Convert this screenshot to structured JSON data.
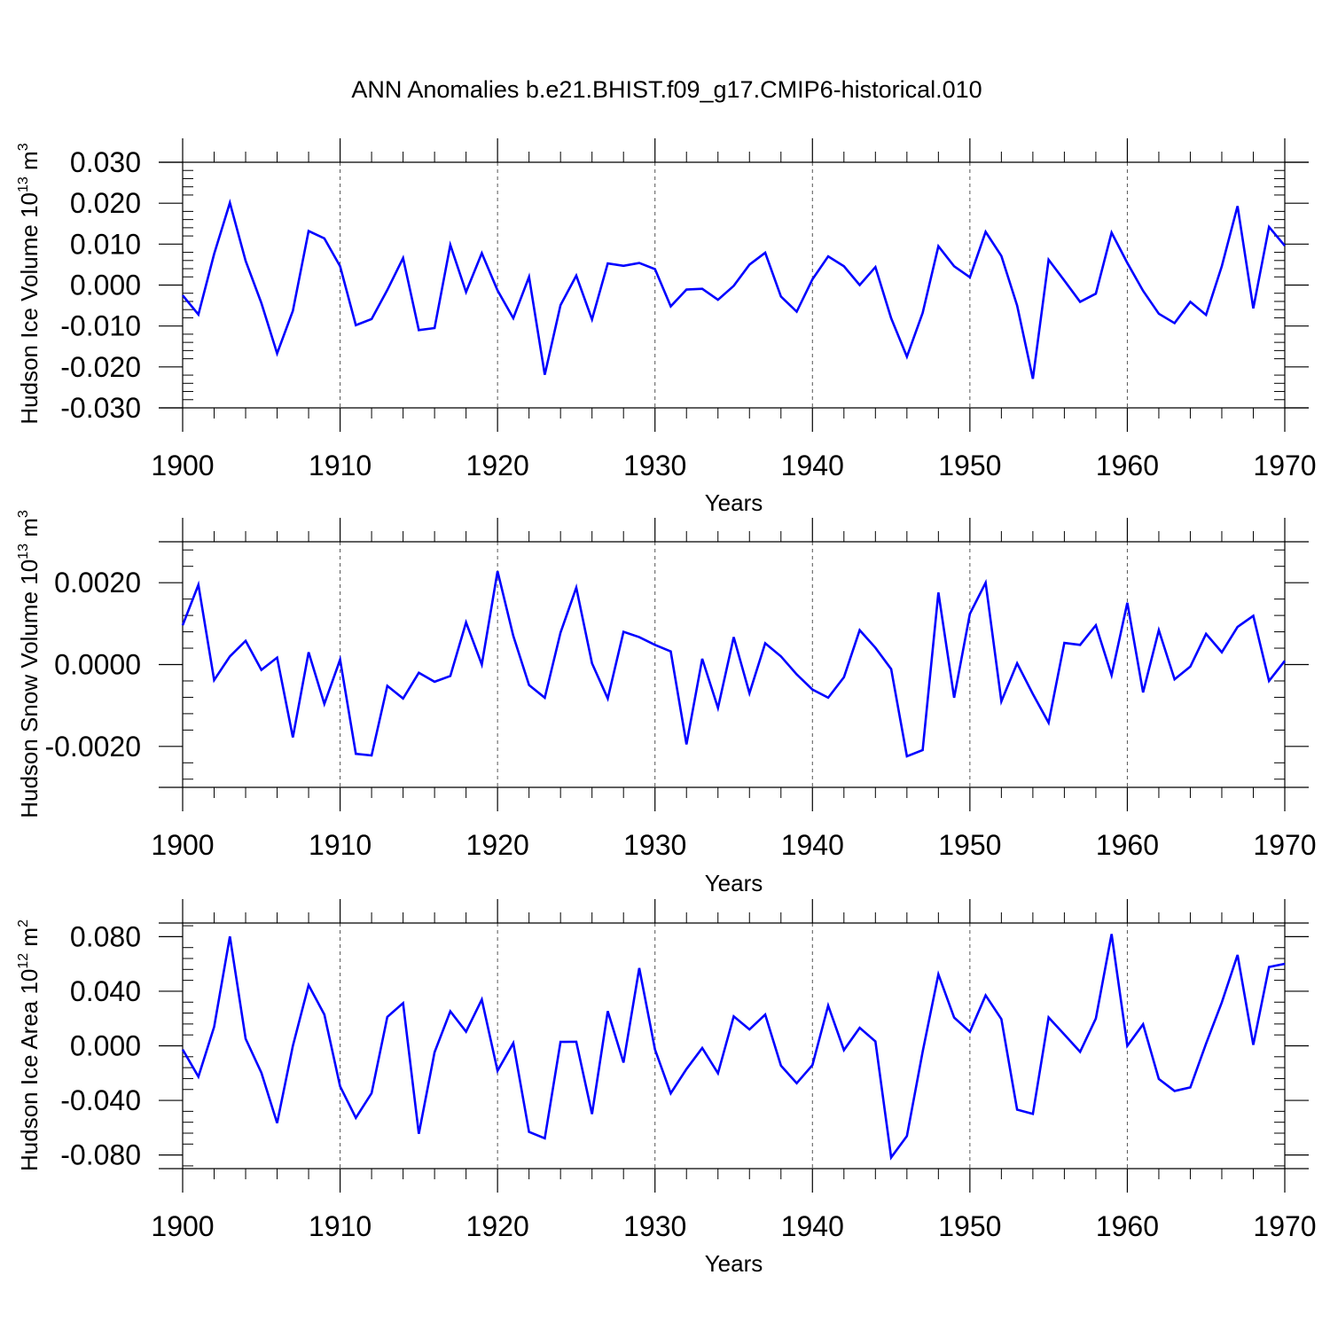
{
  "chart_data": {
    "type": "line",
    "title": "ANN Anomalies b.e21.BHIST.f09_g17.CMIP6-historical.010",
    "panels": [
      {
        "ylabel": "Hudson Ice Volume 10",
        "ylabel_exp": "13",
        "ylabel_unit": " m",
        "ylabel_unit_exp": "3",
        "xlabel": "Years",
        "xlim": [
          1900,
          1970
        ],
        "ylim": [
          -0.03,
          0.03
        ],
        "yticks": [
          -0.03,
          -0.02,
          -0.01,
          0.0,
          0.01,
          0.02,
          0.03
        ],
        "ytick_labels": [
          "-0.030",
          "-0.020",
          "-0.010",
          "0.000",
          "0.010",
          "0.020",
          "0.030"
        ],
        "xticks": [
          1900,
          1910,
          1920,
          1930,
          1940,
          1950,
          1960,
          1970
        ],
        "xtick_labels": [
          "1900",
          "1910",
          "1920",
          "1930",
          "1940",
          "1950",
          "1960",
          "1970"
        ],
        "color": "#0000ff",
        "x_start": 1900,
        "values": [
          -0.0025,
          -0.0072,
          0.0076,
          0.0201,
          0.0059,
          -0.0044,
          -0.0167,
          -0.0063,
          0.0132,
          0.0114,
          0.0046,
          -0.0098,
          -0.0083,
          -0.0012,
          0.0066,
          -0.011,
          -0.0105,
          0.0098,
          -0.0017,
          0.0078,
          -0.0013,
          -0.0081,
          0.002,
          -0.0219,
          -0.0049,
          0.0023,
          -0.0084,
          0.0053,
          0.0047,
          0.0054,
          0.0039,
          -0.0052,
          -0.0011,
          -0.0009,
          -0.0036,
          -0.0002,
          0.005,
          0.0079,
          -0.0028,
          -0.0065,
          0.0014,
          0.007,
          0.0046,
          0.0,
          0.0044,
          -0.0081,
          -0.0175,
          -0.0068,
          0.0095,
          0.0046,
          0.0019,
          0.013,
          0.0071,
          -0.005,
          -0.0229,
          0.0062,
          0.0011,
          -0.0041,
          -0.0021,
          0.0128,
          0.0054,
          -0.0014,
          -0.007,
          -0.0093,
          -0.0041,
          -0.0073,
          0.0046,
          0.0193,
          -0.0057,
          0.0142,
          0.0096
        ]
      },
      {
        "ylabel": "Hudson Snow Volume 10",
        "ylabel_exp": "13",
        "ylabel_unit": " m",
        "ylabel_unit_exp": "3",
        "xlabel": "Years",
        "xlim": [
          1900,
          1970
        ],
        "ylim": [
          -0.003,
          0.003
        ],
        "yticks": [
          -0.002,
          0.0,
          0.002
        ],
        "ytick_labels": [
          "-0.0020",
          "0.0000",
          "0.0020"
        ],
        "xticks": [
          1900,
          1910,
          1920,
          1930,
          1940,
          1950,
          1960,
          1970
        ],
        "xtick_labels": [
          "1900",
          "1910",
          "1920",
          "1930",
          "1940",
          "1950",
          "1960",
          "1970"
        ],
        "color": "#0000ff",
        "x_start": 1900,
        "values": [
          0.00096,
          0.00195,
          -0.00038,
          0.0002,
          0.00058,
          -0.00013,
          0.00017,
          -0.00178,
          0.0003,
          -0.00096,
          0.00012,
          -0.00218,
          -0.00222,
          -0.00052,
          -0.00083,
          -0.0002,
          -0.00042,
          -0.00028,
          0.00103,
          0.0,
          0.00228,
          0.0007,
          -0.0005,
          -0.00081,
          0.00078,
          0.00188,
          3e-05,
          -0.00083,
          0.0008,
          0.00067,
          0.00048,
          0.00032,
          -0.00195,
          0.00014,
          -0.00106,
          0.00067,
          -0.0007,
          0.00052,
          0.0002,
          -0.00024,
          -0.00061,
          -0.00081,
          -0.00031,
          0.00084,
          0.00041,
          -0.00011,
          -0.00224,
          -0.00209,
          0.00176,
          -0.00081,
          0.00124,
          0.002,
          -0.0009,
          3e-05,
          -0.00072,
          -0.00142,
          0.00053,
          0.00048,
          0.00096,
          -0.00026,
          0.00151,
          -0.00068,
          0.00084,
          -0.00036,
          -5e-05,
          0.00075,
          0.0003,
          0.00092,
          0.00119,
          -0.0004,
          9e-05
        ]
      },
      {
        "ylabel": "Hudson Ice Area 10",
        "ylabel_exp": "12",
        "ylabel_unit": " m",
        "ylabel_unit_exp": "2",
        "xlabel": "Years",
        "xlim": [
          1900,
          1970
        ],
        "ylim": [
          -0.09,
          0.09
        ],
        "yticks": [
          -0.08,
          -0.04,
          0.0,
          0.04,
          0.08
        ],
        "ytick_labels": [
          "-0.080",
          "-0.040",
          "0.000",
          "0.040",
          "0.080"
        ],
        "xticks": [
          1900,
          1910,
          1920,
          1930,
          1940,
          1950,
          1960,
          1970
        ],
        "xtick_labels": [
          "1900",
          "1910",
          "1920",
          "1930",
          "1940",
          "1950",
          "1960",
          "1970"
        ],
        "color": "#0000ff",
        "x_start": 1900,
        "values": [
          -0.0027,
          -0.0226,
          0.0139,
          0.0802,
          0.0052,
          -0.0197,
          -0.0566,
          0.0,
          0.0445,
          0.0229,
          -0.0297,
          -0.0528,
          -0.0347,
          0.0212,
          0.0313,
          -0.0645,
          -0.0047,
          0.0253,
          0.0104,
          0.0339,
          -0.0183,
          0.002,
          -0.0631,
          -0.0678,
          0.0029,
          0.003,
          -0.05,
          0.0254,
          -0.0123,
          0.057,
          -0.0027,
          -0.0348,
          -0.017,
          -0.0016,
          -0.0201,
          0.0216,
          0.012,
          0.0229,
          -0.0145,
          -0.0274,
          -0.0141,
          0.0295,
          -0.0031,
          0.0132,
          0.0032,
          -0.0818,
          -0.0661,
          -0.0043,
          0.0524,
          0.0207,
          0.0103,
          0.037,
          0.0196,
          -0.0468,
          -0.0499,
          0.0208,
          0.0083,
          -0.0044,
          0.02,
          0.0819,
          0.0,
          0.0158,
          -0.0243,
          -0.0331,
          -0.0305,
          0.0016,
          0.0318,
          0.0666,
          0.0007,
          0.0578,
          0.0601
        ]
      }
    ]
  }
}
